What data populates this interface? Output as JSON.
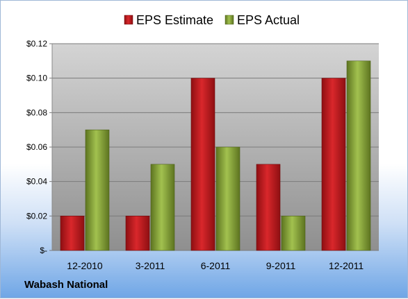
{
  "chart_data": {
    "type": "bar",
    "categories": [
      "12-2010",
      "3-2011",
      "6-2011",
      "9-2011",
      "12-2011"
    ],
    "series": [
      {
        "name": "EPS Estimate",
        "values": [
          0.02,
          0.02,
          0.1,
          0.05,
          0.1
        ],
        "color": "#c0151a"
      },
      {
        "name": "EPS Actual",
        "values": [
          0.07,
          0.05,
          0.06,
          0.02,
          0.11
        ],
        "color": "#8aa838"
      }
    ],
    "title": "",
    "xlabel": "",
    "ylabel": "",
    "ylim": [
      0,
      0.12
    ],
    "yticks": [
      0,
      0.02,
      0.04,
      0.06,
      0.08,
      0.1,
      0.12
    ],
    "ytick_labels": [
      "$-",
      "$0.02",
      "$0.04",
      "$0.06",
      "$0.08",
      "$0.10",
      "$0.12"
    ],
    "grid": true,
    "legend_position": "top"
  },
  "footer": {
    "company": "Wabash National"
  }
}
